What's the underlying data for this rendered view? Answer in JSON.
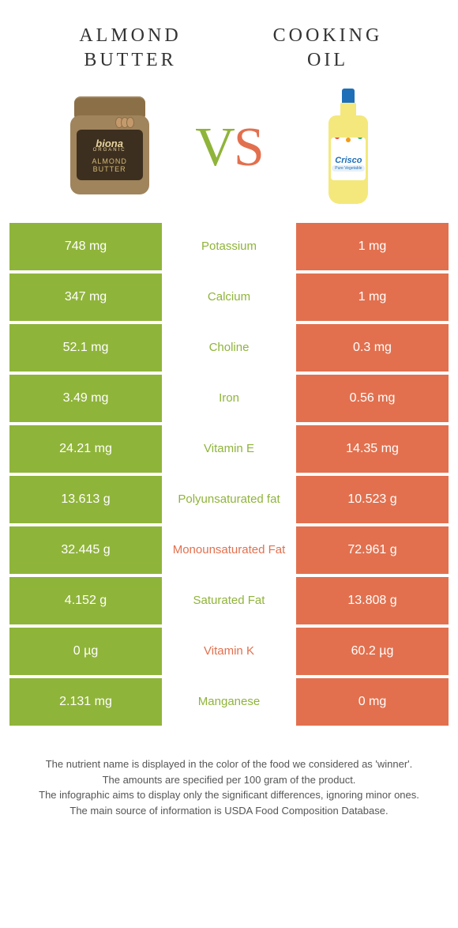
{
  "left_product": {
    "title_line1": "ALMOND",
    "title_line2": "BUTTER",
    "jar_brand": "biona",
    "jar_sub": "ORGANIC",
    "jar_prod1": "ALMOND",
    "jar_prod2": "BUTTER"
  },
  "right_product": {
    "title_line1": "COOKING",
    "title_line2": "OIL",
    "bottle_brand": "Crisco",
    "bottle_sub": "Pure Vegetable"
  },
  "vs": {
    "v": "V",
    "s": "S"
  },
  "colors": {
    "left": "#8fb43a",
    "right": "#e2704e"
  },
  "rows": [
    {
      "left": "748 mg",
      "label": "Potassium",
      "right": "1 mg",
      "winner": "left"
    },
    {
      "left": "347 mg",
      "label": "Calcium",
      "right": "1 mg",
      "winner": "left"
    },
    {
      "left": "52.1 mg",
      "label": "Choline",
      "right": "0.3 mg",
      "winner": "left"
    },
    {
      "left": "3.49 mg",
      "label": "Iron",
      "right": "0.56 mg",
      "winner": "left"
    },
    {
      "left": "24.21 mg",
      "label": "Vitamin E",
      "right": "14.35 mg",
      "winner": "left"
    },
    {
      "left": "13.613 g",
      "label": "Polyunsaturated fat",
      "right": "10.523 g",
      "winner": "left"
    },
    {
      "left": "32.445 g",
      "label": "Monounsaturated Fat",
      "right": "72.961 g",
      "winner": "right"
    },
    {
      "left": "4.152 g",
      "label": "Saturated Fat",
      "right": "13.808 g",
      "winner": "left"
    },
    {
      "left": "0 µg",
      "label": "Vitamin K",
      "right": "60.2 µg",
      "winner": "right"
    },
    {
      "left": "2.131 mg",
      "label": "Manganese",
      "right": "0 mg",
      "winner": "left"
    }
  ],
  "footer": {
    "line1": "The nutrient name is displayed in the color of the food we considered as 'winner'.",
    "line2": "The amounts are specified per 100 gram of the product.",
    "line3": "The infographic aims to display only the significant differences, ignoring minor ones.",
    "line4": "The main source of information is USDA Food Composition Database."
  }
}
